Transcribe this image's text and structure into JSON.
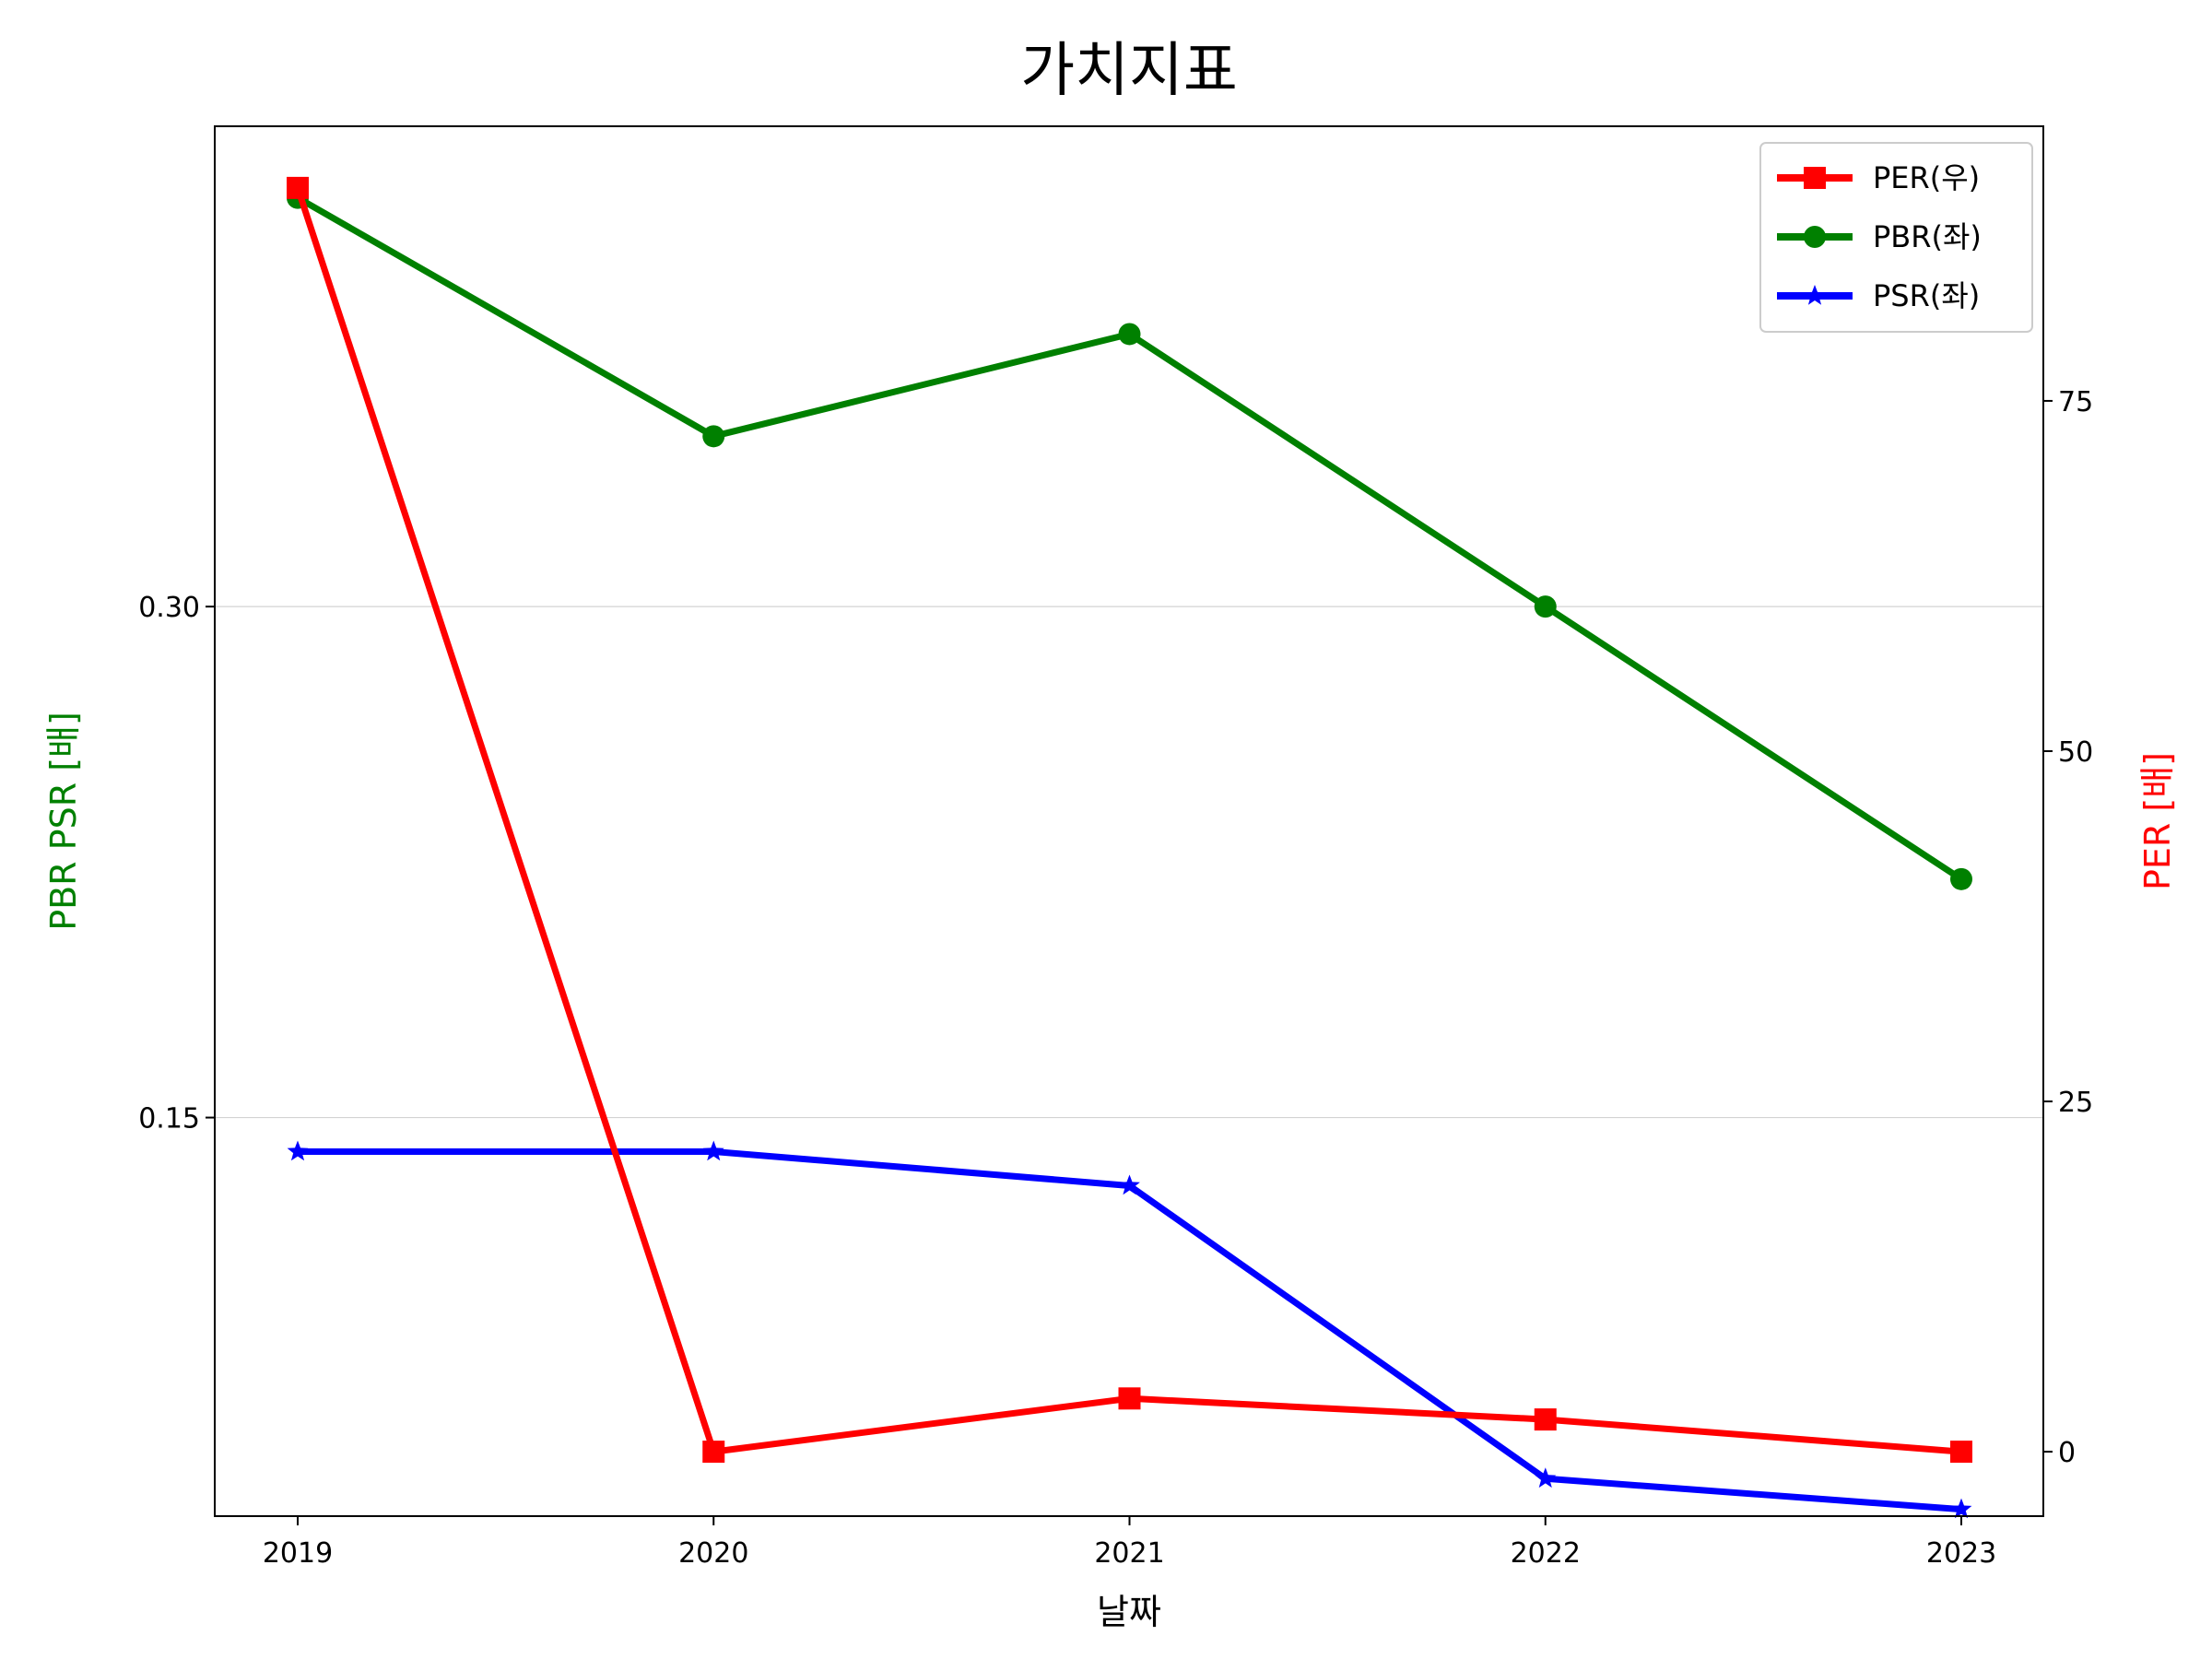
{
  "chart_data": {
    "type": "line",
    "title": "가치지표",
    "xlabel": "날짜",
    "ylabel_left": "PBR PSR [배]",
    "ylabel_right": "PER [배]",
    "x": [
      "2019",
      "2020",
      "2021",
      "2022",
      "2023"
    ],
    "left_axis": {
      "ylim": [
        0.033,
        0.441
      ],
      "ticks": [
        0.15,
        0.3
      ],
      "tick_labels": [
        "0.15",
        "0.30"
      ],
      "grid": true
    },
    "right_axis": {
      "ylim": [
        -4.6,
        94.6
      ],
      "ticks": [
        0,
        25,
        50,
        75
      ],
      "tick_labels": [
        "0",
        "25",
        "50",
        "75"
      ]
    },
    "series": [
      {
        "name": "PER(우)",
        "axis": "right",
        "color": "#ff0000",
        "marker": "square",
        "values": [
          90.2,
          0.0,
          3.8,
          2.3,
          0.0
        ]
      },
      {
        "name": "PBR(좌)",
        "axis": "left",
        "color": "#008000",
        "marker": "circle",
        "values": [
          0.42,
          0.35,
          0.38,
          0.3,
          0.22
        ]
      },
      {
        "name": "PSR(좌)",
        "axis": "left",
        "color": "#0000ff",
        "marker": "star",
        "values": [
          0.14,
          0.14,
          0.13,
          0.044,
          0.035
        ]
      }
    ],
    "legend": {
      "position": "top-right"
    },
    "ylabel_left_color": "#008000",
    "ylabel_right_color": "#ff0000"
  }
}
